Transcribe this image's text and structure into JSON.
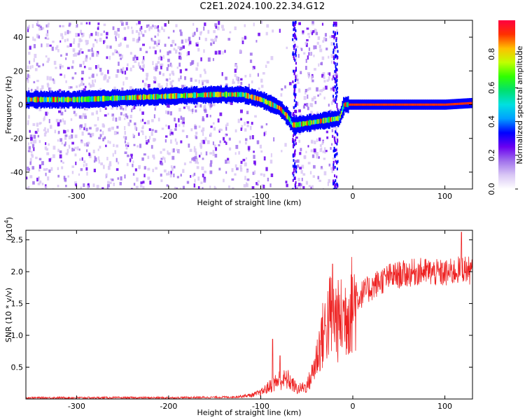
{
  "title": "C2E1.2024.100.22.34.G12",
  "colors": {
    "snr_line": "#ee2222",
    "colormap": [
      "#ffffff",
      "#d9c7f5",
      "#a070ec",
      "#6a00f0",
      "#0000ff",
      "#00a0ff",
      "#00e0e0",
      "#00e070",
      "#30ff00",
      "#c0ff00",
      "#ffc000",
      "#ff3000",
      "#ff0040"
    ]
  },
  "chart_data": [
    {
      "type": "heatmap",
      "name": "spectrogram",
      "xlabel": "Height of straight line (km)",
      "ylabel": "Frequency (Hz)",
      "xlim": [
        -355,
        130
      ],
      "ylim": [
        -50,
        50
      ],
      "xticks": [
        -300,
        -200,
        -100,
        0,
        100
      ],
      "xtick_labels": [
        "-300",
        "-200",
        "-100",
        "0",
        "100"
      ],
      "yticks": [
        -40,
        -20,
        0,
        20,
        40
      ],
      "ytick_labels": [
        "-40",
        "-20",
        "0",
        "20",
        "40"
      ],
      "colorbar": {
        "label": "Normalized spectral amplitude",
        "range": [
          0,
          1
        ],
        "ticks": [
          0.0,
          0.2,
          0.4,
          0.6,
          0.8
        ],
        "tick_labels": [
          "0.0",
          "0.2",
          "0.4",
          "0.6",
          "0.8"
        ]
      },
      "ridge": {
        "x": [
          -355,
          -300,
          -250,
          -200,
          -150,
          -120,
          -100,
          -80,
          -70,
          -66,
          -62,
          -15,
          -10,
          0,
          50,
          100,
          130
        ],
        "y": [
          3,
          3,
          4,
          5,
          6,
          6,
          3,
          -2,
          -8,
          -12,
          -12,
          -8,
          0,
          0,
          0,
          0,
          1
        ]
      }
    },
    {
      "type": "line",
      "name": "snr",
      "xlabel": "Height of straight line (km)",
      "ylabel": "SNR (10 * v/v)",
      "y_multiplier_label": "(x10",
      "y_multiplier_exp": "4",
      "y_multiplier_close": ")",
      "xlim": [
        -355,
        130
      ],
      "ylim": [
        0,
        2.65
      ],
      "xticks": [
        -300,
        -200,
        -100,
        0,
        100
      ],
      "xtick_labels": [
        "-300",
        "-200",
        "-100",
        "0",
        "100"
      ],
      "yticks": [
        0.5,
        1.0,
        1.5,
        2.0,
        2.5
      ],
      "ytick_labels": [
        "0.5",
        "1.0",
        "1.5",
        "2.0",
        "2.5"
      ],
      "envelope": {
        "x": [
          -355,
          -200,
          -130,
          -110,
          -100,
          -90,
          -80,
          -70,
          -60,
          -50,
          -45,
          -40,
          -35,
          -30,
          -25,
          -20,
          -15,
          -10,
          -5,
          0,
          10,
          20,
          30,
          40,
          50,
          60,
          70,
          80,
          90,
          100,
          110,
          120,
          130
        ],
        "y": [
          0.02,
          0.02,
          0.03,
          0.06,
          0.1,
          0.2,
          0.3,
          0.3,
          0.15,
          0.2,
          0.35,
          0.6,
          0.9,
          1.1,
          1.3,
          1.3,
          1.2,
          1.3,
          1.4,
          1.5,
          1.65,
          1.75,
          1.85,
          1.92,
          1.95,
          1.97,
          2.0,
          2.0,
          1.98,
          1.97,
          2.0,
          2.05,
          2.0
        ]
      },
      "spikes": [
        {
          "x": -87,
          "y": 0.94
        },
        {
          "x": -79,
          "y": 0.68
        },
        {
          "x": -22,
          "y": 2.12
        },
        {
          "x": 118,
          "y": 2.62
        }
      ]
    }
  ]
}
